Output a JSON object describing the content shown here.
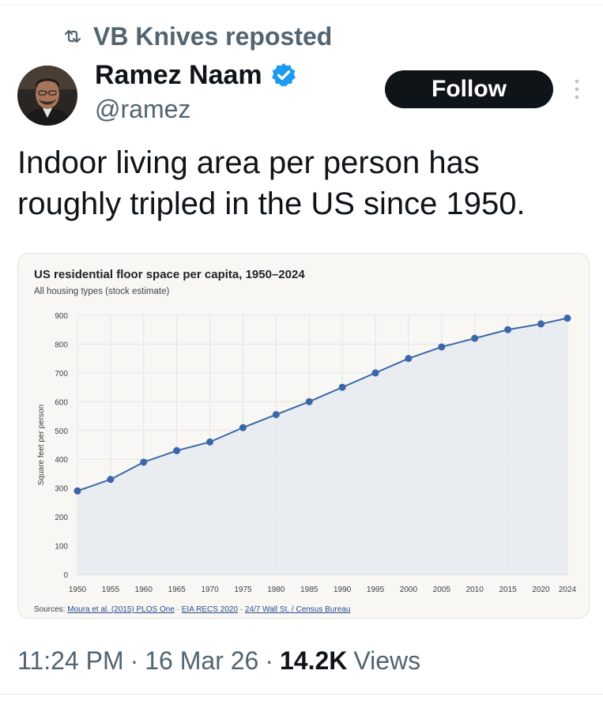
{
  "repost": {
    "text": "VB Knives reposted",
    "icon": "repost-icon"
  },
  "author": {
    "name": "Ramez Naam",
    "handle": "@ramez",
    "verified": true,
    "badge_color": "#1d9bf0"
  },
  "follow_button": {
    "label": "Follow"
  },
  "tweet": {
    "line1": "Indoor living area per person has",
    "line2": "roughly tripled in the US since 1950."
  },
  "chart_data": {
    "type": "area",
    "title": "US residential floor space per capita, 1950–2024",
    "subtitle": "All housing types (stock estimate)",
    "xlabel": "",
    "ylabel": "Square feet per person",
    "x": [
      1950,
      1955,
      1960,
      1965,
      1970,
      1975,
      1980,
      1985,
      1990,
      1995,
      2000,
      2005,
      2010,
      2015,
      2020,
      2024
    ],
    "xticks": [
      "1950",
      "1955",
      "1960",
      "1965",
      "1970",
      "1975",
      "1980",
      "1985",
      "1990",
      "1995",
      "2000",
      "2005",
      "2010",
      "2015",
      "2020",
      "2024"
    ],
    "series": [
      {
        "values": [
          290,
          330,
          390,
          430,
          460,
          510,
          555,
          600,
          650,
          700,
          750,
          790,
          820,
          850,
          870,
          890
        ]
      }
    ],
    "ylim": [
      0,
      900
    ],
    "yticks": [
      "0",
      "100",
      "200",
      "300",
      "400",
      "500",
      "600",
      "700",
      "800",
      "900"
    ],
    "grid": true,
    "colors": {
      "line": "#3b66a7",
      "fill": "#e7ebf1"
    },
    "sources_label": "Sources:",
    "sources": [
      "Moura et al. (2015) PLOS One",
      "EIA RECS 2020",
      "24/7 Wall St. / Census Bureau"
    ],
    "sources_sep": "·"
  },
  "footer": {
    "time": "11:24 PM",
    "date": "16 Mar 26",
    "views_count": "14.2K",
    "views_label": "Views",
    "separator": "·"
  }
}
